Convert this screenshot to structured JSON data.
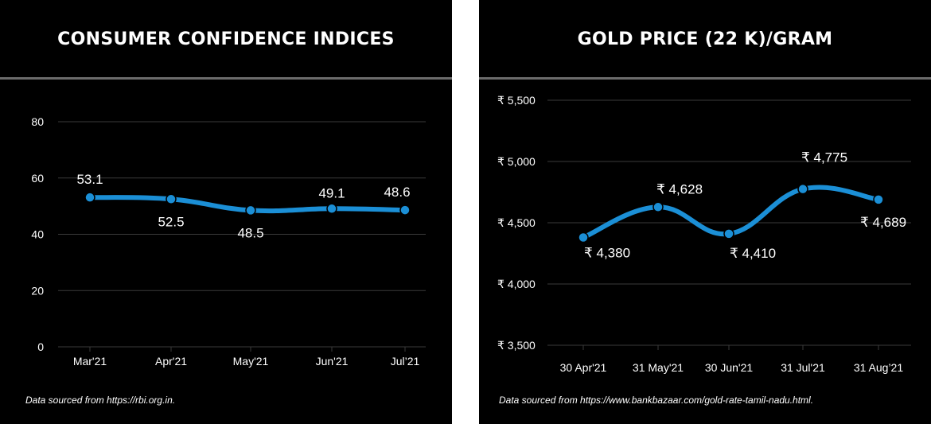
{
  "colors": {
    "background": "#000000",
    "line": "#1b8fd6",
    "grid": "#3a3a3a",
    "text": "#ffffff",
    "rule": "#6b6b6b",
    "separator": "#ffffff"
  },
  "chart_data": [
    {
      "type": "line",
      "title": "CONSUMER CONFIDENCE INDICES",
      "categories": [
        "Mar'21",
        "Apr'21",
        "May'21",
        "Jun'21",
        "Jul’21"
      ],
      "series": [
        {
          "values": [
            53.1,
            52.5,
            48.5,
            49.1,
            48.6
          ]
        }
      ],
      "data_labels": [
        "53.1",
        "52.5",
        "48.5",
        "49.1",
        "48.6"
      ],
      "ylim": [
        0,
        80
      ],
      "yticks": [
        "0",
        "20",
        "40",
        "60",
        "80"
      ],
      "grid": true,
      "smooth": true,
      "source_note": "Data sourced from https://rbi.org.in."
    },
    {
      "type": "line",
      "title": "GOLD PRICE (22 K)/GRAM",
      "categories": [
        "30 Apr'21",
        "31 May'21",
        "30 Jun'21",
        "31 Jul'21",
        "31 Aug’21"
      ],
      "series": [
        {
          "values": [
            4380,
            4628,
            4410,
            4775,
            4689
          ]
        }
      ],
      "data_labels": [
        "₹ 4,380",
        "₹ 4,628",
        "₹ 4,410",
        "₹ 4,775",
        "₹ 4,689"
      ],
      "ylim": [
        3500,
        5500
      ],
      "yticks": [
        "₹ 3,500",
        "₹ 4,000",
        "₹ 4,500",
        "₹ 5,000",
        "₹ 5,500"
      ],
      "grid": true,
      "smooth": true,
      "source_note": "Data sourced from https://www.bankbazaar.com/gold-rate-tamil-nadu.html."
    }
  ]
}
